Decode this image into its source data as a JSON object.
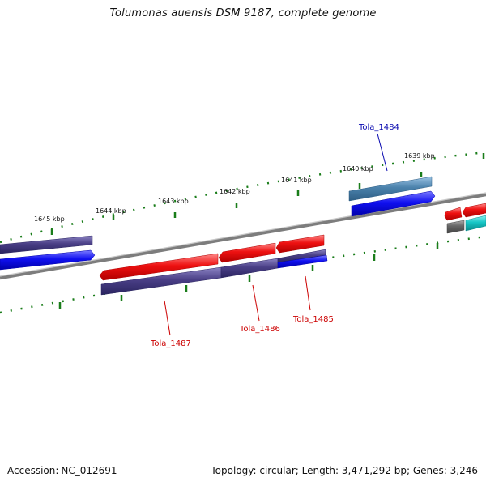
{
  "title": "Tolumonas auensis DSM 9187, complete genome",
  "footer": {
    "accession_label": "Accession:",
    "accession_value": "NC_012691",
    "summary": "Topology: circular; Length: 3,471,292 bp; Genes: 3,246"
  },
  "kbp_labels": [
    "1645 kbp",
    "1644 kbp",
    "1643 kbp",
    "1642 kbp",
    "1641 kbp",
    "1640 kbp",
    "1639 kbp"
  ],
  "gene_labels": [
    "Tola_1484",
    "Tola_1485",
    "Tola_1486",
    "Tola_1487"
  ],
  "colors": {
    "forward_cds": "#ee1111",
    "reverse_cds": "#1010f0",
    "purple_block": "#4a3f86",
    "steel_block": "#4b82ac",
    "grey_block": "#666666",
    "cyan_block": "#16c6c6",
    "backbone": "#7d7d7d",
    "ticks": "#1a7d1a",
    "label_blue": "#0a0ab0",
    "label_red": "#cc0000"
  }
}
